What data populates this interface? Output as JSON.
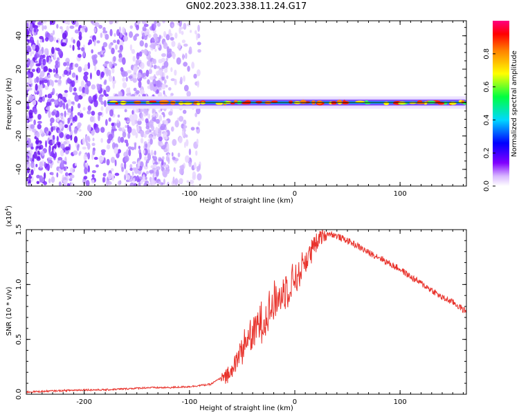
{
  "title": "GN02.2023.338.11.24.G17",
  "colors": {
    "snr_line": "#e8322b",
    "axes": "#000000"
  },
  "chart_data": [
    {
      "type": "heatmap",
      "xlabel": "Height of straight line (km)",
      "ylabel": "Frequency (Hz)",
      "xlim": [
        -255,
        163
      ],
      "ylim": [
        -50,
        49
      ],
      "xticks": [
        -200,
        -100,
        0,
        100
      ],
      "yticks": [
        40,
        20,
        0,
        -20,
        -40
      ],
      "grid": false,
      "colorbar": {
        "label": "Normalized spectral amplitude",
        "range": [
          0.0,
          1.0
        ],
        "ticks": [
          "0.0",
          "0.2",
          "0.4",
          "0.6",
          "0.8"
        ],
        "colormap": "rainbow (violet-blue-cyan-green-yellow-red-magenta)"
      },
      "noise_region_km": [
        -255,
        -90
      ],
      "signal_band": {
        "x_start_km": -178,
        "x_end_km": 163,
        "frequency_hz": 0
      }
    },
    {
      "type": "line",
      "xlabel": "Height of straight line (km)",
      "ylabel": "SNR (10 * v/v)",
      "scale_label_base": "(x10",
      "scale_label_exp": "4",
      "scale_label_close": ")",
      "xlim": [
        -255,
        163
      ],
      "ylim": [
        0,
        1.5
      ],
      "xticks": [
        -200,
        -100,
        0,
        100
      ],
      "yticks": [
        "0.0",
        "0.5",
        "1.0",
        "1.5"
      ],
      "grid": false,
      "series": [
        {
          "color": "#e8322b",
          "x": [
            -255,
            -230,
            -200,
            -180,
            -160,
            -140,
            -120,
            -100,
            -90,
            -80,
            -70,
            -60,
            -55,
            -50,
            -45,
            -40,
            -35,
            -30,
            -25,
            -20,
            -15,
            -10,
            -5,
            0,
            5,
            10,
            15,
            20,
            25,
            30,
            35,
            40,
            50,
            60,
            70,
            80,
            90,
            100,
            110,
            120,
            130,
            140,
            150,
            163
          ],
          "y": [
            0.02,
            0.03,
            0.04,
            0.04,
            0.05,
            0.06,
            0.06,
            0.07,
            0.08,
            0.09,
            0.15,
            0.22,
            0.35,
            0.45,
            0.55,
            0.6,
            0.68,
            0.72,
            0.8,
            0.88,
            0.93,
            1.0,
            1.05,
            1.1,
            1.15,
            1.25,
            1.32,
            1.38,
            1.45,
            1.47,
            1.46,
            1.44,
            1.4,
            1.35,
            1.29,
            1.25,
            1.19,
            1.14,
            1.07,
            1.01,
            0.95,
            0.88,
            0.84,
            0.75
          ]
        }
      ]
    }
  ]
}
